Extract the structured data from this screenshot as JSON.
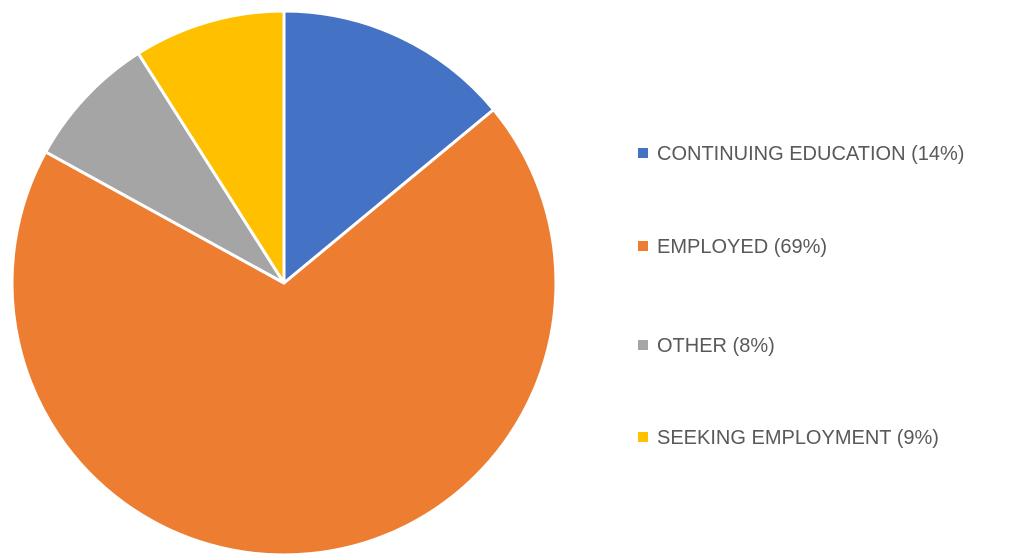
{
  "chart_data": {
    "type": "pie",
    "title": "",
    "slices": [
      {
        "label": "CONTINUING EDUCATION (14%)",
        "category": "CONTINUING EDUCATION",
        "value": 14,
        "color": "#4472C4"
      },
      {
        "label": "EMPLOYED (69%)",
        "category": "EMPLOYED",
        "value": 69,
        "color": "#ED7D31"
      },
      {
        "label": "OTHER (8%)",
        "category": "OTHER",
        "value": 8,
        "color": "#A5A5A5"
      },
      {
        "label": "SEEKING EMPLOYMENT (9%)",
        "category": "SEEKING EMPLOYMENT",
        "value": 9,
        "color": "#FFC000"
      }
    ],
    "legend_position": "right"
  }
}
